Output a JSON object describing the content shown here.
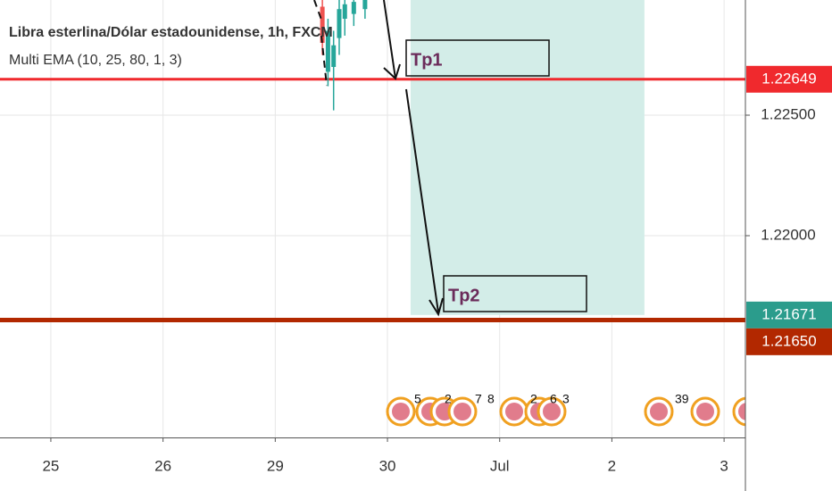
{
  "chart_data": {
    "type": "candlestick",
    "title": "Libra esterlina/Dólar estadounidense, 1h, FXCM",
    "subtitle": "Multi EMA (10, 25, 80, 1, 3)",
    "xlim": [
      -0.453,
      6.19
    ],
    "xticks": [
      {
        "value": 0,
        "label": "25"
      },
      {
        "value": 1,
        "label": "26"
      },
      {
        "value": 2,
        "label": "29"
      },
      {
        "value": 3,
        "label": "30"
      },
      {
        "value": 4,
        "label": "Jul"
      },
      {
        "value": 5,
        "label": "2"
      },
      {
        "value": 6,
        "label": "3"
      }
    ],
    "ylim": [
      1.21163,
      1.229778
    ],
    "yticks": [
      {
        "value": 1.22,
        "label": "1.22000"
      },
      {
        "value": 1.225,
        "label": "1.22500"
      }
    ],
    "grid": true,
    "up_color": "#26a69a",
    "down_color": "#ef5350",
    "x": [
      2.42,
      2.47,
      2.52,
      2.57,
      2.62,
      2.7,
      2.8
    ],
    "open": [
      1.2295,
      1.2268,
      1.227,
      1.2282,
      1.229,
      1.2292,
      1.2294
    ],
    "high": [
      1.2298,
      1.229,
      1.2285,
      1.2298,
      1.2299,
      1.23,
      1.23
    ],
    "low": [
      1.2275,
      1.2262,
      1.2252,
      1.2275,
      1.2283,
      1.2287,
      1.229
    ],
    "close": [
      1.228,
      1.2285,
      1.2279,
      1.2294,
      1.2296,
      1.2297,
      1.2298
    ],
    "target_zone": {
      "x": [
        3.206,
        5.29
      ],
      "value": 1.21671,
      "color": "#d3ede8"
    },
    "hlines": [
      {
        "value": 1.22649,
        "color": "#f0292d"
      },
      {
        "value": 1.2165,
        "color": "#b22800"
      }
    ],
    "price_labels": [
      {
        "value": 1.22649,
        "label": "1.22649",
        "color": "#f0292d"
      },
      {
        "value": 1.21671,
        "label": "1.21671",
        "color": "#2b9c8c"
      },
      {
        "value": 1.2165,
        "label": "1.21650",
        "color": "#b22800"
      }
    ],
    "annotations": [
      "Tp1",
      "Tp2"
    ],
    "events": [
      "5",
      "2",
      "7",
      "8",
      "2",
      "6",
      "3",
      "39"
    ]
  }
}
